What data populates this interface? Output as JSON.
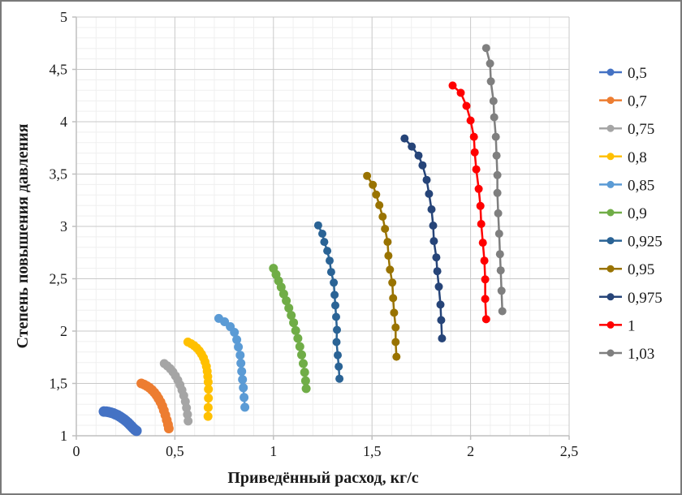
{
  "chart_data": {
    "type": "line",
    "title": "",
    "xlabel": "Приведённый расход, кг/с",
    "ylabel": "Степень повышения давления",
    "xlim": [
      0,
      2.5
    ],
    "ylim": [
      1,
      5
    ],
    "grid": "minor+major",
    "legend_position": "right",
    "x_ticks": {
      "values": [
        0,
        0.5,
        1,
        1.5,
        2,
        2.5
      ],
      "labels": [
        "0",
        "0,5",
        "1",
        "1,5",
        "2",
        "2,5"
      ]
    },
    "y_ticks": {
      "values": [
        1,
        1.5,
        2,
        2.5,
        3,
        3.5,
        4,
        4.5,
        5
      ],
      "labels": [
        "1",
        "1,5",
        "2",
        "2,5",
        "3",
        "3,5",
        "4",
        "4,5",
        "5"
      ]
    },
    "minor_step_x": 0.1,
    "minor_step_y": 0.1,
    "colors": {
      "axis_line": "#BFBFBF",
      "major_grid": "#C9C9C9",
      "minor_grid": "#EFEFEF",
      "text": "#1a1a1a"
    },
    "series": [
      {
        "name": "0,5",
        "color": "#4472C4",
        "marker_radius": 6.5,
        "line_width": 3,
        "points": [
          [
            0.14,
            1.232
          ],
          [
            0.152,
            1.23
          ],
          [
            0.164,
            1.226
          ],
          [
            0.176,
            1.221
          ],
          [
            0.188,
            1.214
          ],
          [
            0.199,
            1.205
          ],
          [
            0.21,
            1.195
          ],
          [
            0.221,
            1.183
          ],
          [
            0.232,
            1.17
          ],
          [
            0.242,
            1.156
          ],
          [
            0.252,
            1.141
          ],
          [
            0.262,
            1.125
          ],
          [
            0.271,
            1.108
          ],
          [
            0.28,
            1.09
          ],
          [
            0.289,
            1.072
          ],
          [
            0.297,
            1.058
          ],
          [
            0.305,
            1.047
          ]
        ]
      },
      {
        "name": "0,7",
        "color": "#ED7D31",
        "marker_radius": 6,
        "line_width": 2.5,
        "points": [
          [
            0.33,
            1.5
          ],
          [
            0.344,
            1.489
          ],
          [
            0.358,
            1.475
          ],
          [
            0.371,
            1.458
          ],
          [
            0.384,
            1.437
          ],
          [
            0.396,
            1.413
          ],
          [
            0.407,
            1.386
          ],
          [
            0.417,
            1.356
          ],
          [
            0.427,
            1.322
          ],
          [
            0.436,
            1.284
          ],
          [
            0.444,
            1.243
          ],
          [
            0.452,
            1.198
          ],
          [
            0.459,
            1.15
          ],
          [
            0.465,
            1.108
          ],
          [
            0.469,
            1.07
          ]
        ]
      },
      {
        "name": "0,75",
        "color": "#A5A5A5",
        "marker_radius": 5.5,
        "line_width": 2.5,
        "points": [
          [
            0.446,
            1.69
          ],
          [
            0.461,
            1.668
          ],
          [
            0.476,
            1.641
          ],
          [
            0.49,
            1.609
          ],
          [
            0.503,
            1.572
          ],
          [
            0.515,
            1.531
          ],
          [
            0.526,
            1.486
          ],
          [
            0.536,
            1.437
          ],
          [
            0.545,
            1.384
          ],
          [
            0.553,
            1.327
          ],
          [
            0.559,
            1.267
          ],
          [
            0.564,
            1.204
          ],
          [
            0.567,
            1.14
          ]
        ]
      },
      {
        "name": "0,8",
        "color": "#FFC000",
        "marker_radius": 5.5,
        "line_width": 2.5,
        "points": [
          [
            0.566,
            1.895
          ],
          [
            0.582,
            1.88
          ],
          [
            0.597,
            1.861
          ],
          [
            0.611,
            1.838
          ],
          [
            0.624,
            1.811
          ],
          [
            0.635,
            1.78
          ],
          [
            0.645,
            1.745
          ],
          [
            0.653,
            1.706
          ],
          [
            0.66,
            1.663
          ],
          [
            0.664,
            1.616
          ],
          [
            0.667,
            1.566
          ],
          [
            0.669,
            1.513
          ],
          [
            0.67,
            1.445
          ],
          [
            0.67,
            1.36
          ],
          [
            0.669,
            1.27
          ],
          [
            0.668,
            1.185
          ]
        ]
      },
      {
        "name": "0,85",
        "color": "#5B9BD5",
        "marker_radius": 5.5,
        "line_width": 2.5,
        "points": [
          [
            0.723,
            2.121
          ],
          [
            0.752,
            2.089
          ],
          [
            0.781,
            2.043
          ],
          [
            0.802,
            1.988
          ],
          [
            0.814,
            1.918
          ],
          [
            0.822,
            1.848
          ],
          [
            0.831,
            1.77
          ],
          [
            0.835,
            1.693
          ],
          [
            0.839,
            1.615
          ],
          [
            0.843,
            1.537
          ],
          [
            0.847,
            1.459
          ],
          [
            0.851,
            1.366
          ],
          [
            0.855,
            1.272
          ]
        ]
      },
      {
        "name": "0,9",
        "color": "#70AD47",
        "marker_radius": 5.5,
        "line_width": 2.5,
        "points": [
          [
            1.0,
            2.6
          ],
          [
            1.013,
            2.54
          ],
          [
            1.026,
            2.48
          ],
          [
            1.039,
            2.42
          ],
          [
            1.052,
            2.355
          ],
          [
            1.065,
            2.29
          ],
          [
            1.078,
            2.22
          ],
          [
            1.09,
            2.15
          ],
          [
            1.102,
            2.08
          ],
          [
            1.113,
            2.005
          ],
          [
            1.124,
            1.93
          ],
          [
            1.134,
            1.852
          ],
          [
            1.143,
            1.773
          ],
          [
            1.151,
            1.69
          ],
          [
            1.158,
            1.606
          ],
          [
            1.163,
            1.525
          ],
          [
            1.166,
            1.45
          ]
        ]
      },
      {
        "name": "0,925",
        "color": "#2A6395",
        "marker_radius": 5,
        "line_width": 2.5,
        "points": [
          [
            1.227,
            3.01
          ],
          [
            1.248,
            2.93
          ],
          [
            1.258,
            2.852
          ],
          [
            1.273,
            2.767
          ],
          [
            1.285,
            2.673
          ],
          [
            1.293,
            2.564
          ],
          [
            1.306,
            2.463
          ],
          [
            1.31,
            2.346
          ],
          [
            1.314,
            2.245
          ],
          [
            1.318,
            2.136
          ],
          [
            1.322,
            2.012
          ],
          [
            1.32,
            1.895
          ],
          [
            1.326,
            1.77
          ],
          [
            1.331,
            1.661
          ],
          [
            1.335,
            1.545
          ]
        ]
      },
      {
        "name": "0,95",
        "color": "#997300",
        "marker_radius": 5,
        "line_width": 2.5,
        "points": [
          [
            1.475,
            3.483
          ],
          [
            1.504,
            3.397
          ],
          [
            1.521,
            3.304
          ],
          [
            1.537,
            3.202
          ],
          [
            1.554,
            3.093
          ],
          [
            1.566,
            2.977
          ],
          [
            1.579,
            2.852
          ],
          [
            1.583,
            2.72
          ],
          [
            1.591,
            2.587
          ],
          [
            1.603,
            2.463
          ],
          [
            1.607,
            2.315
          ],
          [
            1.612,
            2.175
          ],
          [
            1.62,
            2.035
          ],
          [
            1.62,
            1.895
          ],
          [
            1.624,
            1.755
          ]
        ]
      },
      {
        "name": "0,975",
        "color": "#264478",
        "marker_radius": 5,
        "line_width": 2.5,
        "points": [
          [
            1.665,
            3.84
          ],
          [
            1.702,
            3.763
          ],
          [
            1.736,
            3.677
          ],
          [
            1.756,
            3.584
          ],
          [
            1.777,
            3.444
          ],
          [
            1.789,
            3.311
          ],
          [
            1.802,
            3.163
          ],
          [
            1.81,
            3.008
          ],
          [
            1.814,
            2.86
          ],
          [
            1.826,
            2.704
          ],
          [
            1.831,
            2.572
          ],
          [
            1.839,
            2.424
          ],
          [
            1.847,
            2.253
          ],
          [
            1.851,
            2.105
          ],
          [
            1.855,
            1.93
          ]
        ]
      },
      {
        "name": "1",
        "color": "#FF0000",
        "marker_radius": 5,
        "line_width": 2.5,
        "points": [
          [
            1.909,
            4.346
          ],
          [
            1.95,
            4.276
          ],
          [
            1.979,
            4.151
          ],
          [
            2.0,
            4.012
          ],
          [
            2.017,
            3.856
          ],
          [
            2.021,
            3.708
          ],
          [
            2.029,
            3.545
          ],
          [
            2.041,
            3.358
          ],
          [
            2.05,
            3.195
          ],
          [
            2.054,
            3.023
          ],
          [
            2.062,
            2.844
          ],
          [
            2.07,
            2.673
          ],
          [
            2.074,
            2.494
          ],
          [
            2.074,
            2.307
          ],
          [
            2.079,
            2.113
          ]
        ]
      },
      {
        "name": "1,03",
        "color": "#7F7F7F",
        "marker_radius": 5,
        "line_width": 2.5,
        "points": [
          [
            2.079,
            4.704
          ],
          [
            2.099,
            4.556
          ],
          [
            2.103,
            4.385
          ],
          [
            2.116,
            4.198
          ],
          [
            2.12,
            4.043
          ],
          [
            2.128,
            3.856
          ],
          [
            2.132,
            3.677
          ],
          [
            2.136,
            3.49
          ],
          [
            2.136,
            3.319
          ],
          [
            2.14,
            3.125
          ],
          [
            2.145,
            2.93
          ],
          [
            2.149,
            2.735
          ],
          [
            2.153,
            2.58
          ],
          [
            2.157,
            2.385
          ],
          [
            2.161,
            2.19
          ]
        ]
      }
    ],
    "legend_items": [
      "0,5",
      "0,7",
      "0,75",
      "0,8",
      "0,85",
      "0,9",
      "0,925",
      "0,95",
      "0,975",
      "1",
      "1,03"
    ]
  }
}
